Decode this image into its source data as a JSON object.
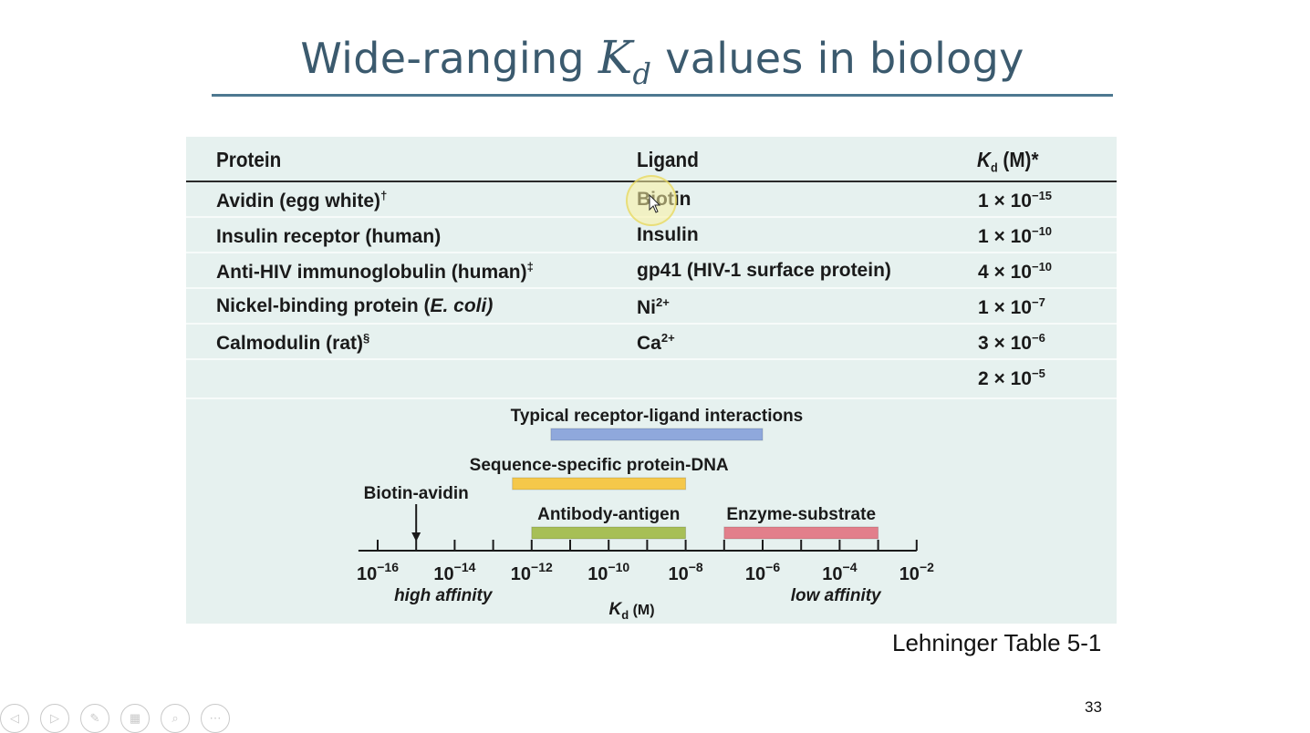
{
  "slide": {
    "title_prefix": "Wide-ranging",
    "title_kd_main": "K",
    "title_kd_sub": "d",
    "title_suffix": "values in biology",
    "source": "Lehninger Table 5-1",
    "page_number": "33"
  },
  "table": {
    "headers": {
      "protein": "Protein",
      "ligand": "Ligand",
      "kd_main": "K",
      "kd_sub": "d",
      "kd_unit": "(M)*"
    },
    "rows": [
      {
        "protein": "Avidin (egg white)",
        "protein_mark": "†",
        "ligand": "Biotin",
        "ligand_sup": "",
        "kd_coef": "1 × 10",
        "kd_exp": "−15"
      },
      {
        "protein": "Insulin receptor (human)",
        "protein_mark": "",
        "ligand": "Insulin",
        "ligand_sup": "",
        "kd_coef": "1 × 10",
        "kd_exp": "−10"
      },
      {
        "protein": "Anti-HIV immunoglobulin (human)",
        "protein_mark": "‡",
        "ligand": "gp41 (HIV-1 surface protein)",
        "ligand_sup": "",
        "kd_coef": "4 × 10",
        "kd_exp": "−10"
      },
      {
        "protein_pre": "Nickel-binding protein (",
        "protein_italic": "E. coli)",
        "protein_mark": "",
        "ligand": "Ni",
        "ligand_sup": "2+",
        "kd_coef": "1 × 10",
        "kd_exp": "−7"
      },
      {
        "protein": "Calmodulin (rat)",
        "protein_mark": "§",
        "ligand": "Ca",
        "ligand_sup": "2+",
        "kd_coef": "3 × 10",
        "kd_exp": "−6"
      },
      {
        "protein": "",
        "protein_mark": "",
        "ligand": "",
        "ligand_sup": "",
        "kd_coef": "2 × 10",
        "kd_exp": "−5"
      }
    ]
  },
  "chart_data": {
    "type": "range-bar",
    "x_scale": "log10",
    "x_unit_main": "K",
    "x_unit_sub": "d",
    "x_unit": "(M)",
    "x_ticks_exp": [
      -16,
      -14,
      -12,
      -10,
      -8,
      -6,
      -4,
      -2
    ],
    "x_tick_base": "10",
    "x_range_exp": [
      -17,
      -1.6
    ],
    "low_label": "high affinity",
    "high_label": "low affinity",
    "marker": {
      "label": "Biotin-avidin",
      "x_exp": -15
    },
    "ranges": [
      {
        "name": "Typical receptor-ligand interactions",
        "from_exp": -11.5,
        "to_exp": -6,
        "color": "#8fa8dc"
      },
      {
        "name": "Sequence-specific protein-DNA",
        "from_exp": -12.5,
        "to_exp": -8,
        "color": "#f5c84a"
      },
      {
        "name": "Antibody-antigen",
        "from_exp": -12,
        "to_exp": -8,
        "color": "#a7bf56"
      },
      {
        "name": "Enzyme-substrate",
        "from_exp": -7,
        "to_exp": -3,
        "color": "#e27f8b"
      }
    ]
  },
  "toolbar": {
    "buttons": [
      {
        "icon": "prev-arrow-icon",
        "glyph": "◁"
      },
      {
        "icon": "next-arrow-icon",
        "glyph": "▷"
      },
      {
        "icon": "pen-icon",
        "glyph": "✎"
      },
      {
        "icon": "slides-grid-icon",
        "glyph": "▦"
      },
      {
        "icon": "zoom-icon",
        "glyph": "⌕"
      },
      {
        "icon": "more-options-icon",
        "glyph": "⋯"
      }
    ]
  }
}
